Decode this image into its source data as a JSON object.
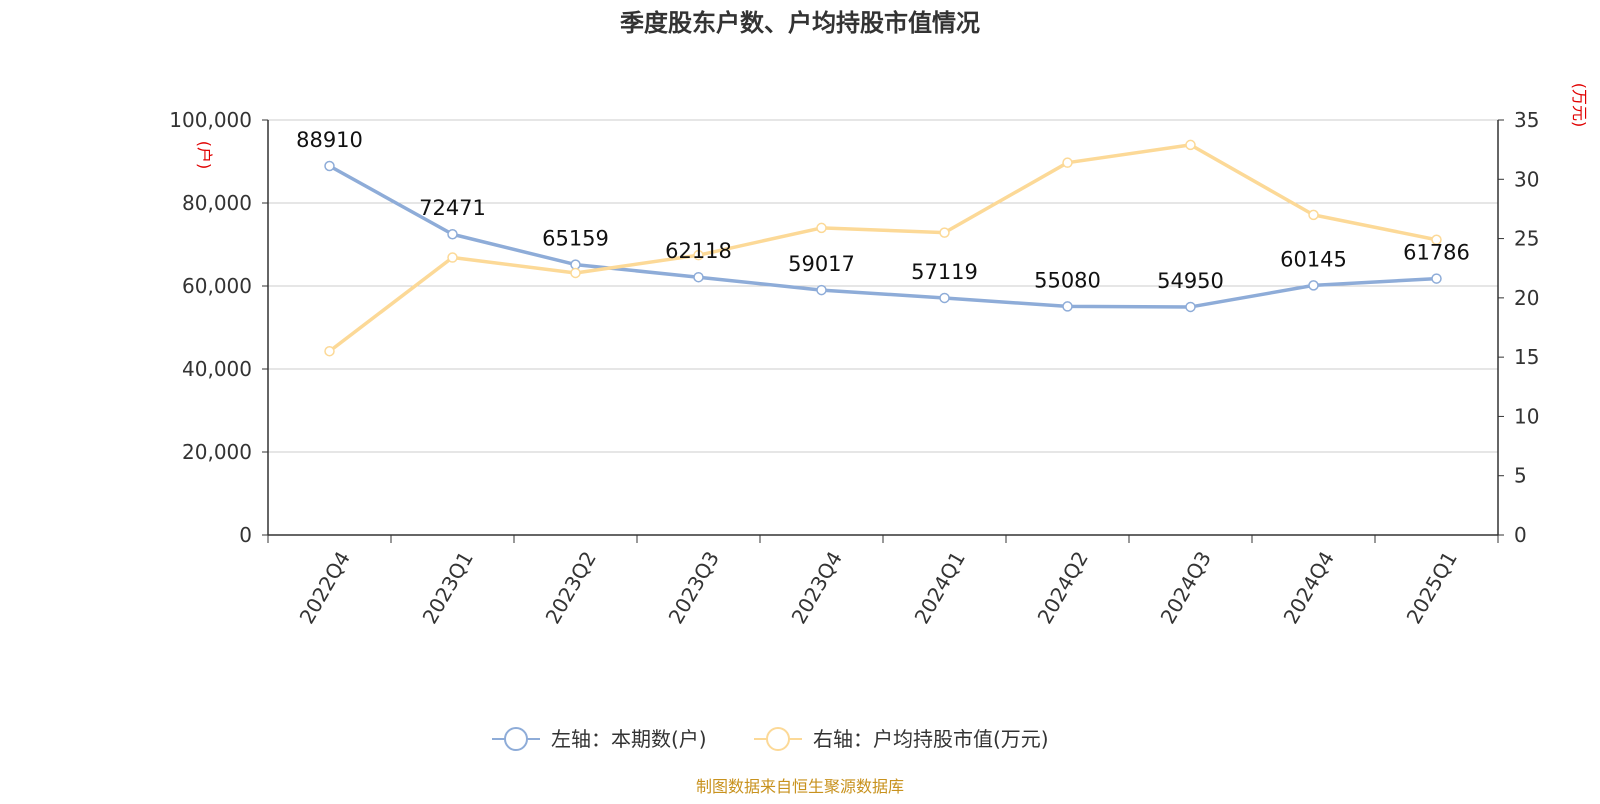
{
  "chart_data": {
    "type": "line",
    "title": "季度股东户数、户均持股市值情况",
    "categories": [
      "2022Q4",
      "2023Q1",
      "2023Q2",
      "2023Q3",
      "2023Q4",
      "2024Q1",
      "2024Q2",
      "2024Q3",
      "2024Q4",
      "2025Q1"
    ],
    "series": [
      {
        "name": "左轴：本期数(户)",
        "axis": "left",
        "color": "#8eacd8",
        "values": [
          88910,
          72471,
          65159,
          62118,
          59017,
          57119,
          55080,
          54950,
          60145,
          61786
        ],
        "data_labels": [
          "88910",
          "72471",
          "65159",
          "62118",
          "59017",
          "57119",
          "55080",
          "54950",
          "60145",
          "61786"
        ]
      },
      {
        "name": "右轴：户均持股市值(万元)",
        "axis": "right",
        "color": "#fcd997",
        "values": [
          15.5,
          23.4,
          22.1,
          23.6,
          25.9,
          25.5,
          31.4,
          32.9,
          27.0,
          24.9
        ]
      }
    ],
    "left_axis": {
      "unit": "(户)",
      "ylim": [
        0,
        100000
      ],
      "ticks": [
        0,
        20000,
        40000,
        60000,
        80000,
        100000
      ],
      "tick_labels": [
        "0",
        "20,000",
        "40,000",
        "60,000",
        "80,000",
        "100,000"
      ]
    },
    "right_axis": {
      "unit": "(万元)",
      "ylim": [
        0,
        35
      ],
      "ticks": [
        0,
        5,
        10,
        15,
        20,
        25,
        30,
        35
      ],
      "tick_labels": [
        "0",
        "5",
        "10",
        "15",
        "20",
        "25",
        "30",
        "35"
      ]
    },
    "grid": true,
    "legend_position": "bottom"
  },
  "footer": {
    "source": "制图数据来自恒生聚源数据库"
  },
  "colors": {
    "grid": "#cccccc",
    "axis": "#333333",
    "unit_text": "#e00000",
    "source_text": "#c8921e"
  }
}
